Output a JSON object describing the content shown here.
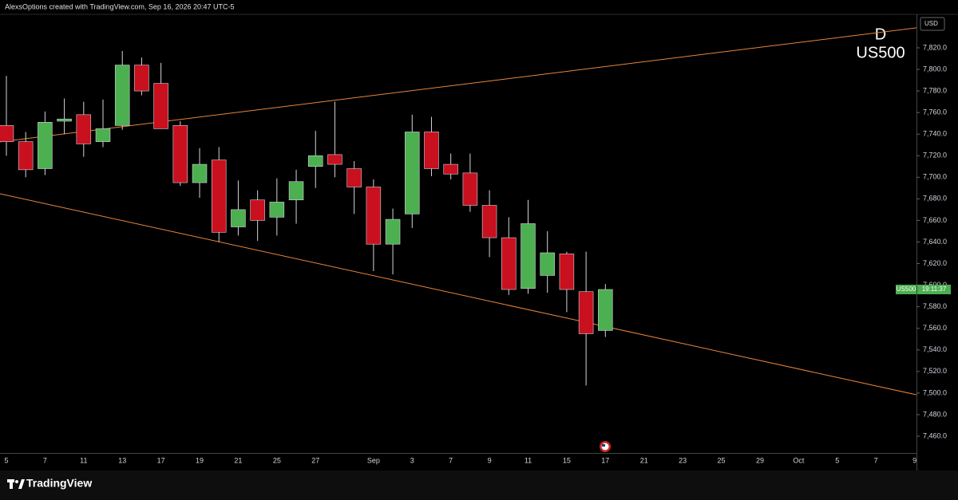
{
  "chart_data": {
    "type": "candlestick",
    "attribution": "AlexsOptions created with TradingView.com, Sep 16, 2026 20:47 UTC-5",
    "currency": "USD",
    "watermark_interval": "D",
    "watermark_symbol": "US500",
    "price_tag_symbol": "US500",
    "price_tag_countdown": "19:11:37",
    "brand": "TradingView",
    "up_color": "#4caf50",
    "down_color": "#c8101e",
    "wick_color": "#d1d4dc",
    "trendline_color": "#e8843a",
    "grid": false,
    "categories": [
      "5",
      null,
      "7",
      null,
      "11",
      null,
      "13",
      null,
      "17",
      null,
      "19",
      null,
      "21",
      null,
      "25",
      null,
      "27",
      null,
      null,
      "Sep",
      null,
      "3",
      null,
      "7",
      null,
      "9",
      null,
      "11",
      null,
      "15",
      null,
      "17",
      null,
      "21",
      null,
      "23",
      null,
      "25",
      null,
      "29",
      null,
      "Oct",
      null,
      "5",
      null,
      "7",
      null,
      "9"
    ],
    "open": [
      7748,
      7733,
      7708,
      7752,
      7758,
      7733,
      7748,
      7804,
      7787,
      7748,
      7695,
      7716,
      7654,
      7679,
      7663,
      7679,
      7710,
      7721,
      7708,
      7691,
      7638,
      7666,
      7742,
      7712,
      7704,
      7674,
      7644,
      7597,
      7609,
      7629,
      7594,
      7558,
      null,
      null,
      null,
      null,
      null,
      null,
      null,
      null,
      null,
      null,
      null,
      null,
      null,
      null,
      null,
      null
    ],
    "high": [
      7794,
      7742,
      7761,
      7773,
      7770,
      7772,
      7817,
      7811,
      7806,
      7752,
      7727,
      7728,
      7697,
      7688,
      7699,
      7707,
      7743,
      7770,
      7715,
      7698,
      7671,
      7758,
      7756,
      7722,
      7722,
      7688,
      7663,
      7679,
      7650,
      7631,
      7631,
      7601,
      null,
      null,
      null,
      null,
      null,
      null,
      null,
      null,
      null,
      null,
      null,
      null,
      null,
      null,
      null,
      null
    ],
    "low": [
      7720,
      7700,
      7702,
      7740,
      7719,
      7728,
      7744,
      7776,
      7745,
      7692,
      7681,
      7640,
      7646,
      7641,
      7646,
      7657,
      7690,
      7700,
      7666,
      7613,
      7610,
      7653,
      7701,
      7698,
      7668,
      7626,
      7591,
      7592,
      7593,
      7575,
      7507,
      7552,
      null,
      null,
      null,
      null,
      null,
      null,
      null,
      null,
      null,
      null,
      null,
      null,
      null,
      null,
      null,
      null
    ],
    "close": [
      7733,
      7707,
      7751,
      7754,
      7731,
      7745,
      7804,
      7780,
      7745,
      7695,
      7712,
      7649,
      7670,
      7660,
      7677,
      7696,
      7720,
      7712,
      7691,
      7638,
      7661,
      7742,
      7708,
      7703,
      7674,
      7644,
      7596,
      7657,
      7630,
      7596,
      7555,
      7596,
      null,
      null,
      null,
      null,
      null,
      null,
      null,
      null,
      null,
      null,
      null,
      null,
      null,
      null,
      null,
      null
    ],
    "xlim": [
      -0.33,
      47.1
    ],
    "ylim": [
      7444.5,
      7851.0
    ],
    "yticks": [
      {
        "value": 7460,
        "label": "7,460.0"
      },
      {
        "value": 7480,
        "label": "7,480.0"
      },
      {
        "value": 7500,
        "label": "7,500.0"
      },
      {
        "value": 7520,
        "label": "7,520.0"
      },
      {
        "value": 7540,
        "label": "7,540.0"
      },
      {
        "value": 7560,
        "label": "7,560.0"
      },
      {
        "value": 7580,
        "label": "7,580.0"
      },
      {
        "value": 7600,
        "label": "7,600.0"
      },
      {
        "value": 7620,
        "label": "7,620.0"
      },
      {
        "value": 7640,
        "label": "7,640.0"
      },
      {
        "value": 7660,
        "label": "7,660.0"
      },
      {
        "value": 7680,
        "label": "7,680.0"
      },
      {
        "value": 7700,
        "label": "7,700.0"
      },
      {
        "value": 7720,
        "label": "7,720.0"
      },
      {
        "value": 7740,
        "label": "7,740.0"
      },
      {
        "value": 7760,
        "label": "7,760.0"
      },
      {
        "value": 7780,
        "label": "7,780.0"
      },
      {
        "value": 7800,
        "label": "7,800.0"
      },
      {
        "value": 7820,
        "label": "7,820.0"
      }
    ],
    "trendlines": [
      {
        "points": [
          {
            "x": -0.33,
            "y": 7732.8
          },
          {
            "x": 47.1,
            "y": 7838.5
          }
        ]
      },
      {
        "points": [
          {
            "x": -0.33,
            "y": 7684.7
          },
          {
            "x": 47.1,
            "y": 7498.4
          }
        ]
      }
    ]
  }
}
